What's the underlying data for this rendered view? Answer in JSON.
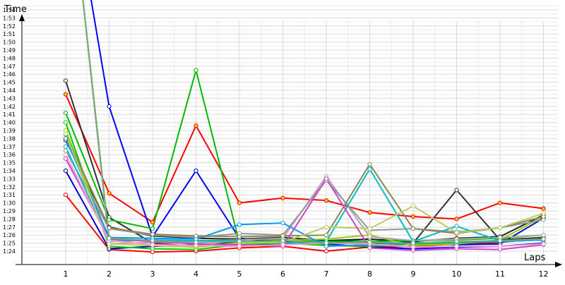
{
  "chart_data": {
    "type": "line",
    "title": "",
    "xlabel": "Laps",
    "ylabel": "Time",
    "x": [
      1,
      2,
      3,
      4,
      5,
      6,
      7,
      8,
      9,
      10,
      11,
      12
    ],
    "x_tick_labels": [
      "1",
      "2",
      "3",
      "4",
      "5",
      "6",
      "7",
      "8",
      "9",
      "10",
      "11",
      "12"
    ],
    "y_tick_labels": [
      "1:24",
      "1:25",
      "1:26",
      "1:27",
      "1:28",
      "1:29",
      "1:30",
      "1:31",
      "1:32",
      "1:33",
      "1:34",
      "1:35",
      "1:36",
      "1:37",
      "1:38",
      "1:39",
      "1:40",
      "1:41",
      "1:42",
      "1:43",
      "1:44",
      "1:45",
      "1:46",
      "1:47",
      "1:48",
      "1:49",
      "1:50",
      "1:51",
      "1:52",
      "1:53",
      "1:54"
    ],
    "ylim_seconds": [
      82,
      95
    ],
    "grid": true,
    "series": [
      {
        "color": "#ff0000",
        "values": [
          103.5,
          91.2,
          87.6,
          99.6,
          90.0,
          90.6,
          90.3,
          88.8,
          88.3,
          88.0,
          90.0,
          89.3
        ]
      },
      {
        "color": "#ff0000",
        "values": [
          91.0,
          84.2,
          83.9,
          84.0,
          84.4,
          84.6,
          84.0,
          84.5,
          84.6,
          84.9,
          85.1,
          85.6
        ]
      },
      {
        "color": "#0000ff",
        "values": [
          134.0,
          102.0,
          85.8,
          94.0,
          85.6,
          85.2,
          84.9,
          84.5,
          84.3,
          84.5,
          84.6,
          85.0
        ]
      },
      {
        "color": "#0000cc",
        "values": [
          94.0,
          84.3,
          84.6,
          84.8,
          84.7,
          84.9,
          85.2,
          85.5,
          85.1,
          84.8,
          84.9,
          88.1
        ]
      },
      {
        "color": "#333333",
        "values": [
          105.2,
          88.2,
          85.0,
          84.6,
          85.2,
          85.4,
          85.3,
          84.9,
          85.0,
          91.6,
          85.4,
          85.7
        ]
      },
      {
        "color": "#222222",
        "values": [
          97.8,
          87.0,
          85.9,
          85.6,
          85.5,
          85.7,
          85.3,
          85.5,
          85.2,
          85.6,
          85.8,
          88.5
        ]
      },
      {
        "color": "#00bb00",
        "values": [
          101.2,
          87.9,
          86.8,
          106.5,
          85.0,
          85.4,
          85.2,
          85.2,
          85.3,
          85.4,
          85.6,
          86.0
        ]
      },
      {
        "color": "#00cc00",
        "values": [
          100.0,
          84.6,
          84.3,
          84.2,
          84.8,
          85.0,
          84.7,
          84.6,
          84.9,
          85.0,
          85.2,
          85.4
        ]
      },
      {
        "color": "#99cc00",
        "values": [
          99.0,
          85.5,
          84.7,
          84.5,
          85.0,
          85.3,
          85.5,
          86.0,
          84.7,
          84.9,
          85.4,
          88.3
        ]
      },
      {
        "color": "#aaaaaa",
        "values": [
          135.0,
          84.9,
          85.1,
          85.3,
          85.4,
          85.6,
          93.3,
          85.8,
          85.3,
          85.5,
          85.7,
          86.0
        ]
      },
      {
        "color": "#999999",
        "values": [
          96.5,
          86.8,
          86.0,
          85.7,
          86.2,
          86.0,
          92.8,
          86.6,
          86.8,
          86.4,
          86.9,
          87.9
        ]
      },
      {
        "color": "#00bbcc",
        "values": [
          97.0,
          85.2,
          85.4,
          85.3,
          85.3,
          85.0,
          85.2,
          94.2,
          85.2,
          87.1,
          85.3,
          85.5
        ]
      },
      {
        "color": "#0099ff",
        "values": [
          98.0,
          85.7,
          85.6,
          85.5,
          87.3,
          87.5,
          84.6,
          84.8,
          85.0,
          85.1,
          85.2,
          85.4
        ]
      },
      {
        "color": "#888855",
        "values": [
          98.5,
          86.9,
          86.1,
          85.9,
          85.8,
          85.9,
          86.0,
          94.8,
          86.8,
          86.2,
          86.9,
          88.3
        ]
      },
      {
        "color": "#bbcc66",
        "values": [
          98.6,
          84.9,
          84.7,
          84.6,
          85.0,
          85.1,
          87.0,
          86.8,
          89.6,
          86.3,
          86.9,
          88.7
        ]
      },
      {
        "color": "#cc44cc",
        "values": [
          95.5,
          85.5,
          85.2,
          84.9,
          84.8,
          84.6,
          93.0,
          84.4,
          84.1,
          84.3,
          84.2,
          84.8
        ]
      },
      {
        "color": "#ff99cc",
        "values": [
          96.0,
          85.3,
          84.8,
          84.7,
          84.6,
          84.8,
          85.0,
          84.9,
          84.5,
          84.6,
          84.6,
          84.9
        ]
      },
      {
        "color": "#77aa77",
        "values": [
          135.0,
          85.6,
          85.3,
          85.1,
          85.2,
          85.3,
          85.0,
          85.1,
          85.0,
          85.2,
          85.3,
          85.5
        ]
      }
    ]
  }
}
